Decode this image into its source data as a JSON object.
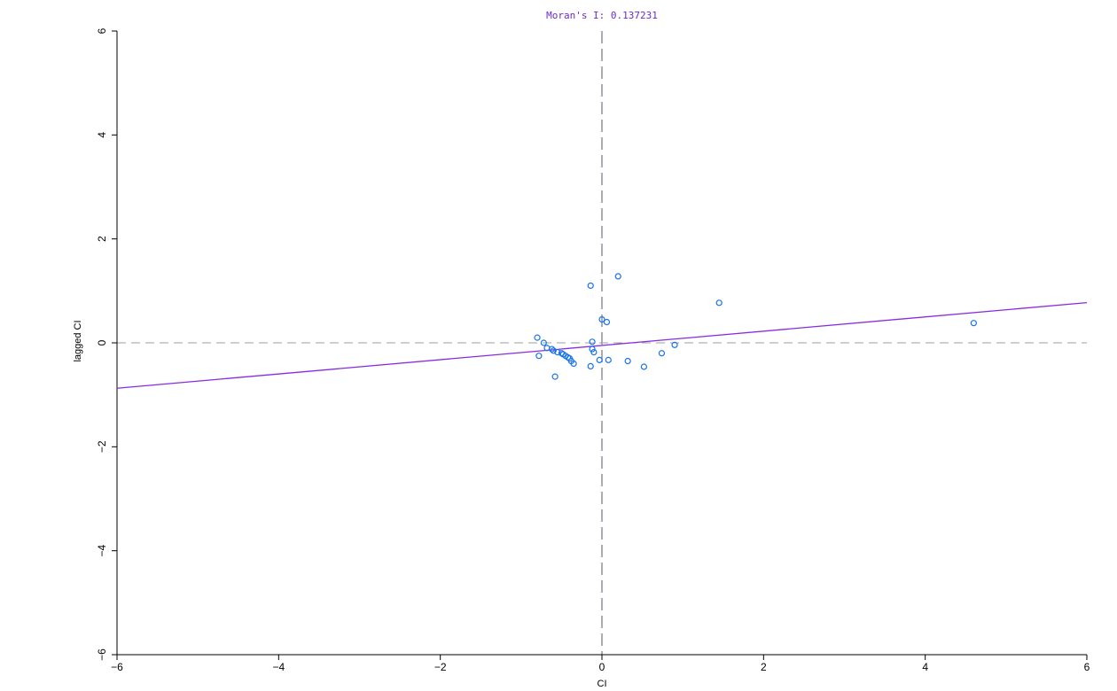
{
  "chart_data": {
    "type": "scatter",
    "title": "Moran's I: 0.137231",
    "xlabel": "CI",
    "ylabel": "lagged CI",
    "xlim": [
      -6,
      6
    ],
    "ylim": [
      -6,
      6
    ],
    "x_ticks": [
      "-6",
      "-4",
      "-2",
      "0",
      "2",
      "4",
      "6"
    ],
    "y_ticks": [
      "-6",
      "-4",
      "-2",
      "0",
      "2",
      "4",
      "6"
    ],
    "grid": false,
    "reference_lines": {
      "x": 0,
      "y": 0,
      "style": "dashed"
    },
    "fit_line": {
      "slope": 0.137231,
      "intercept": -0.05
    },
    "colors": {
      "points": "#1a73e8",
      "fit_line": "#8a2be2",
      "title": "#6a2bd4",
      "reference_lines": "#9aa0a6",
      "axes": "#000000"
    },
    "points": [
      [
        -0.8,
        0.1
      ],
      [
        -0.72,
        0.0
      ],
      [
        -0.68,
        -0.1
      ],
      [
        -0.62,
        -0.12
      ],
      [
        -0.6,
        -0.15
      ],
      [
        -0.55,
        -0.18
      ],
      [
        -0.5,
        -0.2
      ],
      [
        -0.48,
        -0.22
      ],
      [
        -0.45,
        -0.25
      ],
      [
        -0.42,
        -0.28
      ],
      [
        -0.4,
        -0.3
      ],
      [
        -0.38,
        -0.35
      ],
      [
        -0.35,
        -0.4
      ],
      [
        -0.78,
        -0.25
      ],
      [
        -0.58,
        -0.65
      ],
      [
        -0.14,
        1.1
      ],
      [
        0.2,
        1.28
      ],
      [
        -0.12,
        0.02
      ],
      [
        -0.12,
        -0.12
      ],
      [
        -0.1,
        -0.18
      ],
      [
        -0.14,
        -0.45
      ],
      [
        -0.03,
        -0.33
      ],
      [
        0.0,
        0.45
      ],
      [
        0.06,
        0.4
      ],
      [
        0.08,
        -0.33
      ],
      [
        0.32,
        -0.35
      ],
      [
        0.52,
        -0.46
      ],
      [
        0.74,
        -0.2
      ],
      [
        0.9,
        -0.04
      ],
      [
        1.45,
        0.77
      ],
      [
        4.6,
        0.38
      ]
    ]
  }
}
